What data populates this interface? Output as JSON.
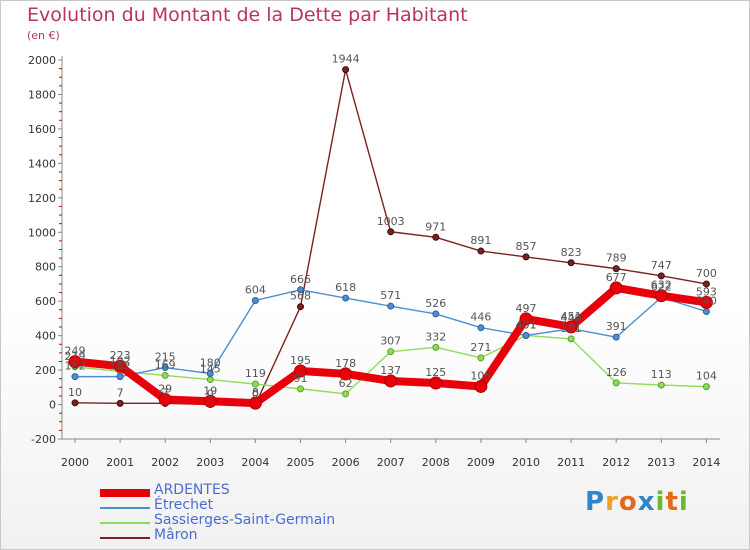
{
  "header": {
    "title": "Evolution du Montant de la Dette par Habitant",
    "unit": "(en €)"
  },
  "logo": {
    "text": "Proxiti"
  },
  "colors": {
    "ARDENTES": "#e8000b",
    "Étrechet": "#4e8fd0",
    "Sassierges-Saint-Germain": "#8fdb5a",
    "Mâron": "#7a2222"
  },
  "chart_data": {
    "type": "line",
    "title": "Evolution du Montant de la Dette par Habitant",
    "subtitle": "(en €)",
    "xlabel": "",
    "ylabel": "",
    "categories": [
      "2000",
      "2001",
      "2002",
      "2003",
      "2004",
      "2005",
      "2006",
      "2007",
      "2008",
      "2009",
      "2010",
      "2011",
      "2012",
      "2013",
      "2014"
    ],
    "ylim": [
      -200,
      2000
    ],
    "yticks": [
      -200,
      0,
      200,
      400,
      600,
      800,
      1000,
      1200,
      1400,
      1600,
      1800,
      2000
    ],
    "grid": false,
    "legend_position": "bottom-left",
    "series": [
      {
        "name": "ARDENTES",
        "values": [
          249,
          223,
          29,
          19,
          8,
          195,
          178,
          137,
          125,
          105,
          497,
          451,
          677,
          632,
          593
        ]
      },
      {
        "name": "Étrechet",
        "values": [
          162,
          162,
          215,
          180,
          604,
          666,
          618,
          571,
          526,
          446,
          401,
          440,
          391,
          622,
          540
        ]
      },
      {
        "name": "Sassierges-Saint-Germain",
        "values": [
          219,
          192,
          169,
          145,
          119,
          91,
          62,
          307,
          332,
          271,
          401,
          381,
          126,
          113,
          104
        ]
      },
      {
        "name": "Mâron",
        "values": [
          10,
          7,
          7,
          0,
          0,
          568,
          1944,
          1003,
          971,
          891,
          857,
          823,
          789,
          747,
          700
        ]
      }
    ]
  }
}
